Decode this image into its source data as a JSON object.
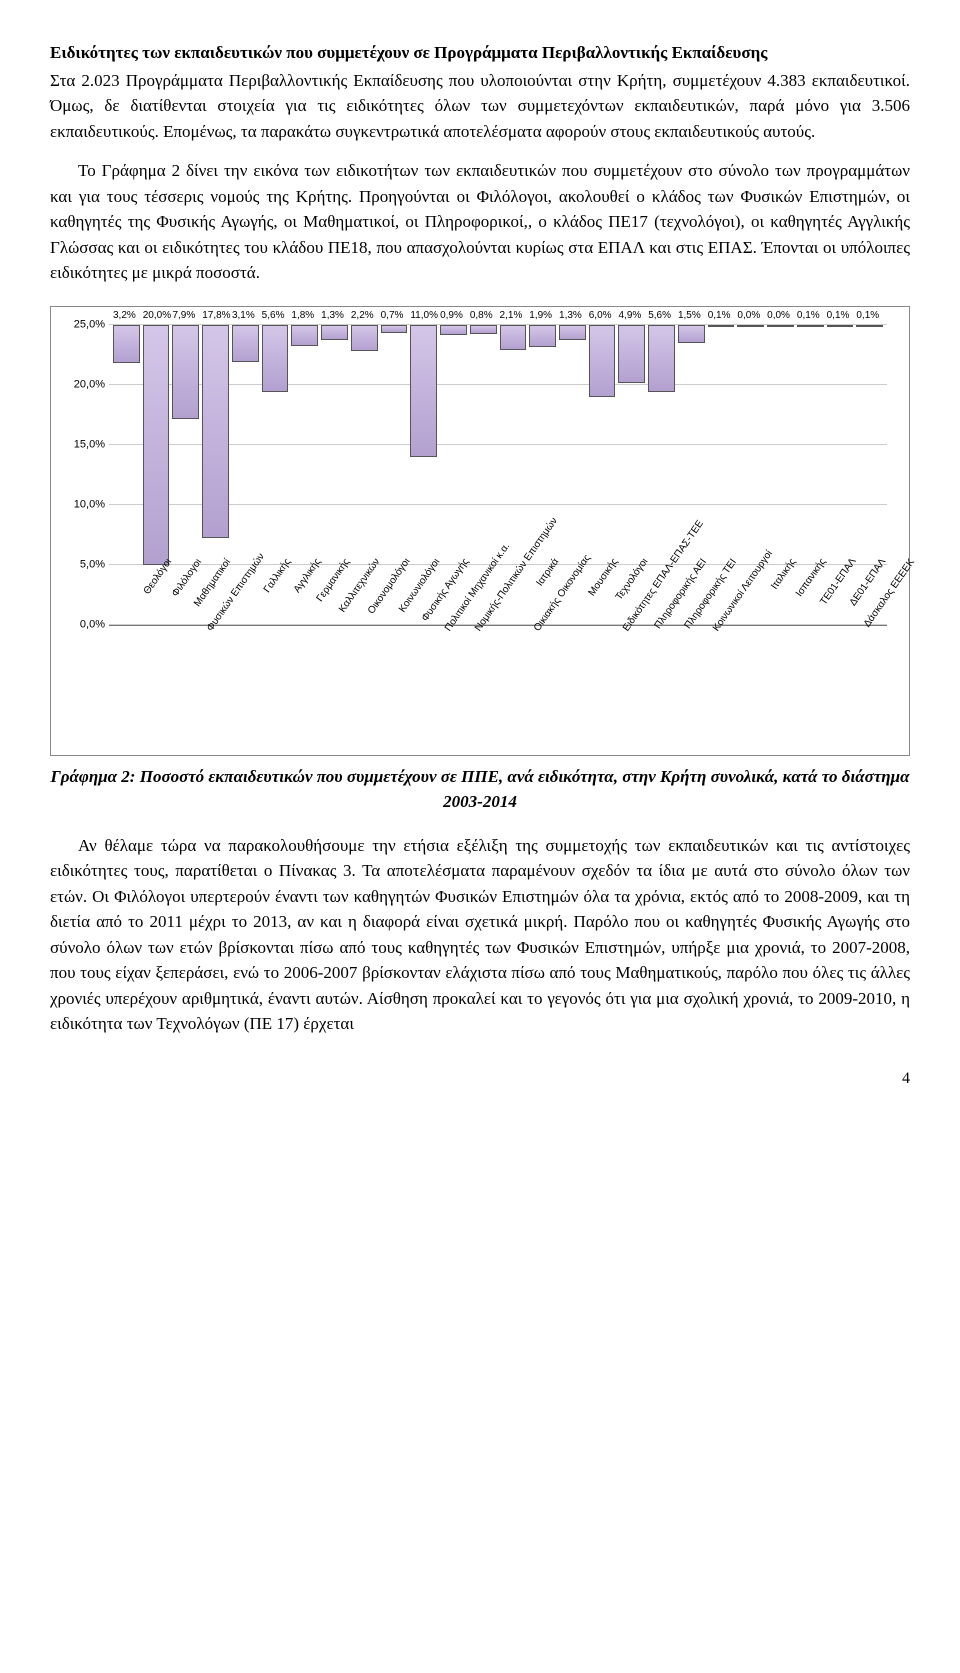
{
  "heading1": "Ειδικότητες των εκπαιδευτικών που συμμετέχουν σε Προγράμματα Περιβαλλοντικής Εκπαίδευσης",
  "para1": "Στα 2.023 Προγράμματα Περιβαλλοντικής Εκπαίδευσης που υλοποιούνται στην Κρήτη, συμμετέχουν 4.383 εκπαιδευτικοί. Όμως, δε διατίθενται στοιχεία για τις ειδικότητες όλων των συμμετεχόντων εκπαιδευτικών, παρά μόνο για 3.506 εκπαιδευτικούς. Επομένως, τα παρακάτω συγκεντρωτικά αποτελέσματα αφορούν στους εκπαιδευτικούς αυτούς.",
  "para2": "Το Γράφημα 2 δίνει την εικόνα των ειδικοτήτων των εκπαιδευτικών που συμμετέχουν στο σύνολο των προγραμμάτων και για τους τέσσερις νομούς της Κρήτης. Προηγούνται οι Φιλόλογοι, ακολουθεί ο κλάδος των Φυσικών Επιστημών, οι καθηγητές της Φυσικής Αγωγής, οι Μαθηματικοί, οι Πληροφορικοί,, ο κλάδος ΠΕ17 (τεχνολόγοι), οι καθηγητές Αγγλικής Γλώσσας και οι ειδικότητες του κλάδου ΠΕ18, που απασχολούνται κυρίως στα ΕΠΑΛ και στις ΕΠΑΣ. Έπονται οι υπόλοιπες ειδικότητες με μικρά ποσοστά.",
  "chart": {
    "ymax": 25,
    "ytick_step": 5,
    "yticks": [
      "0,0%",
      "5,0%",
      "10,0%",
      "15,0%",
      "20,0%",
      "25,0%"
    ],
    "bar_fill": "#b3a0d0",
    "bar_border": "#555555",
    "grid_color": "#cccccc",
    "categories": [
      {
        "label": "Θεολόγοι",
        "value": 3.2,
        "text": "3,2%"
      },
      {
        "label": "Φιλόλογοι",
        "value": 20.0,
        "text": "20,0%"
      },
      {
        "label": "Μαθηματικοί",
        "value": 7.9,
        "text": "7,9%"
      },
      {
        "label": "Φυσικών Επιστημών",
        "value": 17.8,
        "text": "17,8%"
      },
      {
        "label": "Γαλλικής",
        "value": 3.1,
        "text": "3,1%"
      },
      {
        "label": "Αγγλικής",
        "value": 5.6,
        "text": "5,6%"
      },
      {
        "label": "Γερμανικής",
        "value": 1.8,
        "text": "1,8%"
      },
      {
        "label": "Καλλιτεχνικών",
        "value": 1.3,
        "text": "1,3%"
      },
      {
        "label": "Οικονομολόγοι",
        "value": 2.2,
        "text": "2,2%"
      },
      {
        "label": "Κοινωνιολόγοι",
        "value": 0.7,
        "text": "0,7%"
      },
      {
        "label": "Φυσικής Αγωγής",
        "value": 11.0,
        "text": "11,0%"
      },
      {
        "label": "Πολιτικοί Μηχανικοί κ.α.",
        "value": 0.9,
        "text": "0,9%"
      },
      {
        "label": "Νομικής-Πολιτικών Επιστημών",
        "value": 0.8,
        "text": "0,8%"
      },
      {
        "label": "Ιατρικά",
        "value": 2.1,
        "text": "2,1%"
      },
      {
        "label": "Οικιακής Οικονομίας",
        "value": 1.9,
        "text": "1,9%"
      },
      {
        "label": "Μουσικής",
        "value": 1.3,
        "text": "1,3%"
      },
      {
        "label": "Τεχνολόγοι",
        "value": 6.0,
        "text": "6,0%"
      },
      {
        "label": "Ειδικότητες ΕΠΑΛ-ΕΠΑΣ-ΤΕΕ",
        "value": 4.9,
        "text": "4,9%"
      },
      {
        "label": "Πληροφορικής ΑΕΙ",
        "value": 5.6,
        "text": "5,6%"
      },
      {
        "label": "Πληροφορικής ΤΕΙ",
        "value": 1.5,
        "text": "1,5%"
      },
      {
        "label": "Κοινωνικοί Λειτουργοί",
        "value": 0.1,
        "text": "0,1%"
      },
      {
        "label": "Ιταλικής",
        "value": 0.0,
        "text": "0,0%"
      },
      {
        "label": "Ισπανικής",
        "value": 0.0,
        "text": "0,0%"
      },
      {
        "label": "ΤΕ01-ΕΠΑΛ",
        "value": 0.1,
        "text": "0,1%"
      },
      {
        "label": "ΔΕ01-ΕΠΑΛ",
        "value": 0.1,
        "text": "0,1%"
      },
      {
        "label": "Δάσκαλος ΕΕΕΕΚ",
        "value": 0.1,
        "text": "0,1%"
      }
    ]
  },
  "caption_prefix": "Γράφημα 2:",
  "caption_text": "  Ποσοστό εκπαιδευτικών που συμμετέχουν σε ΠΠΕ, ανά ειδικότητα, στην Κρήτη συνολικά, κατά το διάστημα 2003-2014",
  "para3": "Αν θέλαμε τώρα να παρακολουθήσουμε την ετήσια εξέλιξη της συμμετοχής των εκπαιδευτικών και τις αντίστοιχες ειδικότητες τους, παρατίθεται ο Πίνακας 3. Τα αποτελέσματα παραμένουν σχεδόν τα ίδια με αυτά στο σύνολο όλων των ετών. Οι Φιλόλογοι υπερτερούν έναντι των καθηγητών Φυσικών Επιστημών όλα τα χρόνια, εκτός από το 2008-2009, και τη διετία από το 2011 μέχρι το 2013, αν και η διαφορά είναι σχετικά μικρή. Παρόλο που οι καθηγητές Φυσικής Αγωγής στο σύνολο όλων των ετών βρίσκονται πίσω από τους καθηγητές των Φυσικών Επιστημών, υπήρξε μια χρονιά, το 2007-2008, που τους είχαν ξεπεράσει, ενώ το 2006-2007 βρίσκονταν ελάχιστα πίσω από τους Μαθηματικούς, παρόλο που όλες τις άλλες χρονιές υπερέχουν αριθμητικά, έναντι αυτών. Αίσθηση προκαλεί και το γεγονός ότι για μια σχολική χρονιά, το 2009-2010, η ειδικότητα των Τεχνολόγων (ΠΕ 17) έρχεται",
  "pagenum": "4"
}
